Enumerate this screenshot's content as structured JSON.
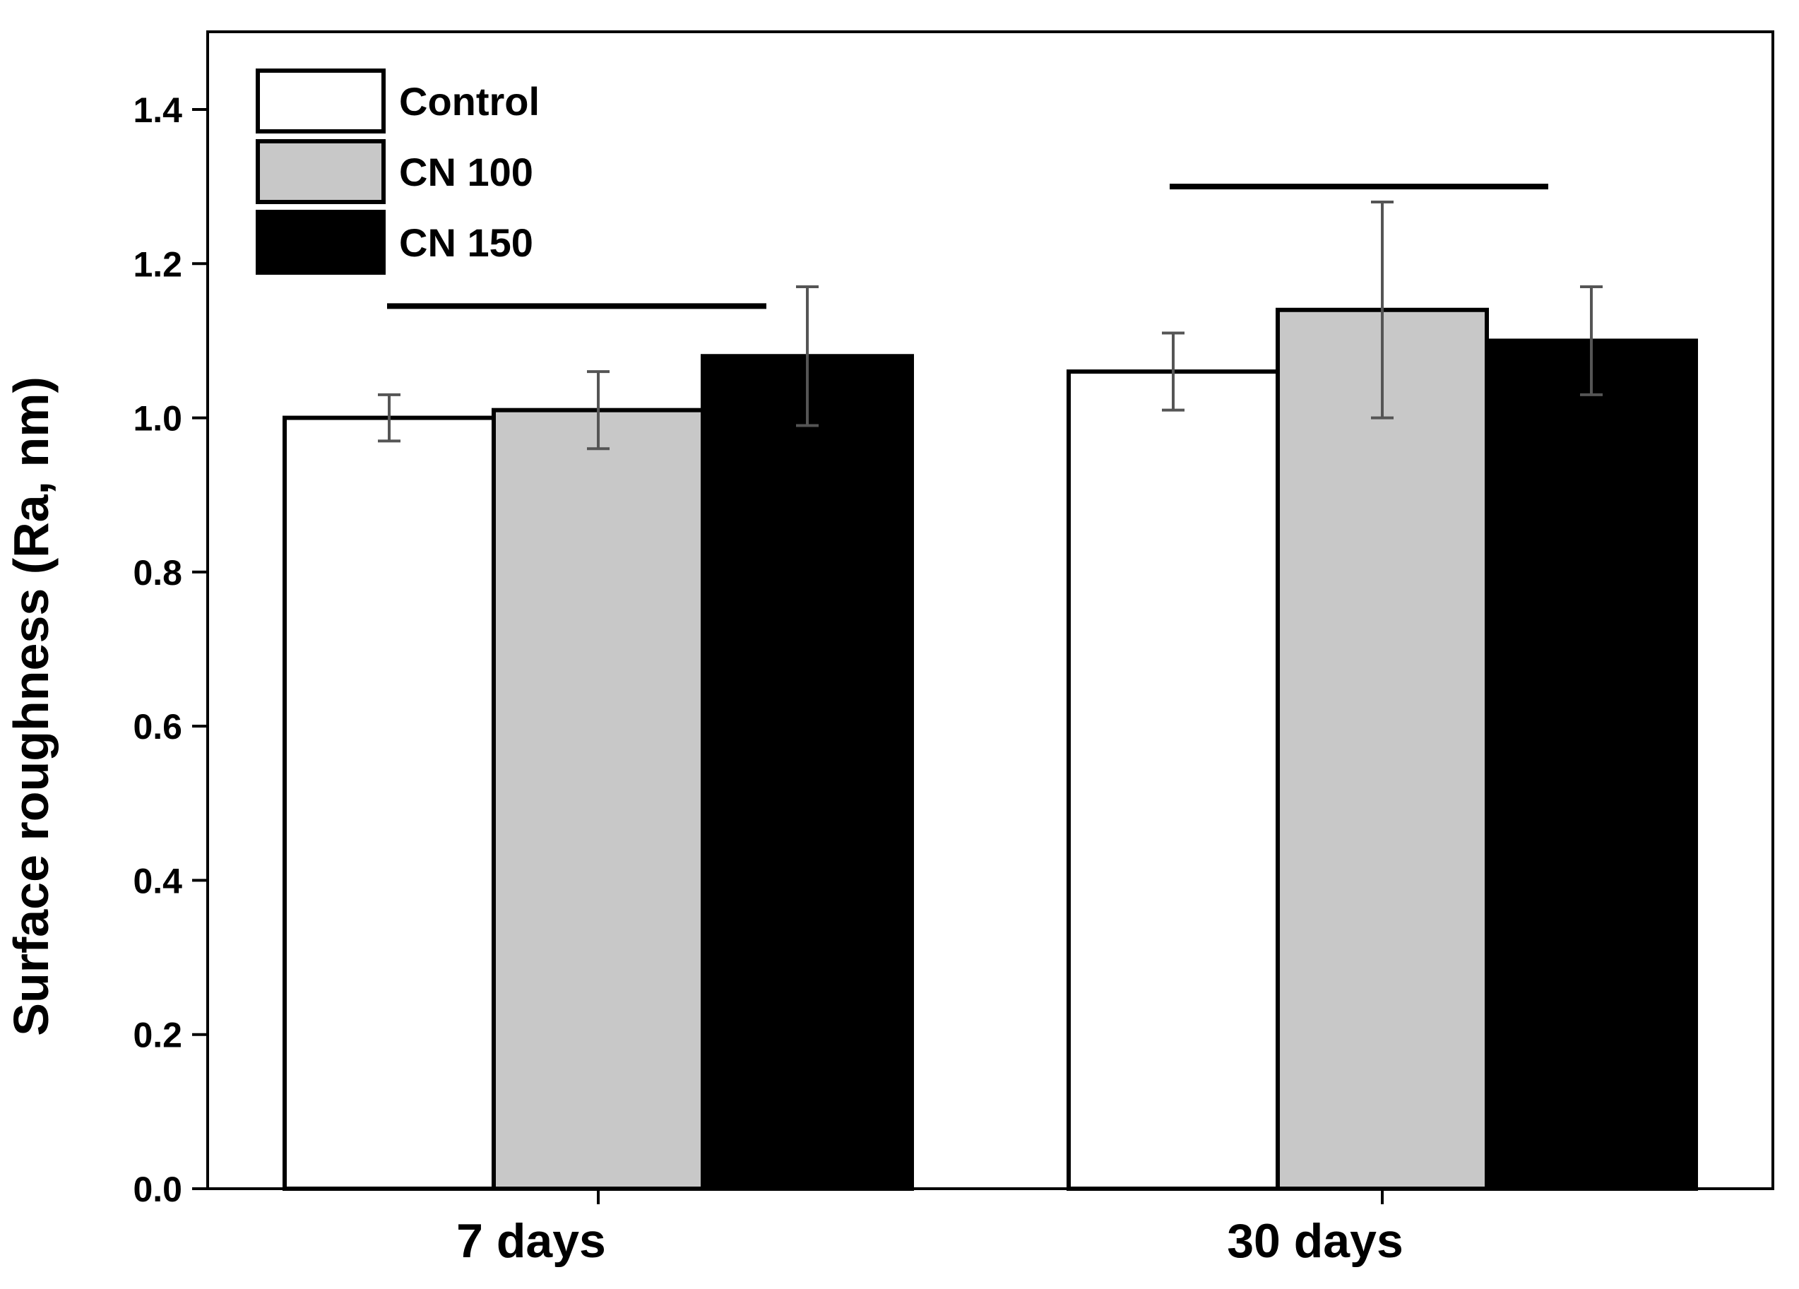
{
  "chart_data": {
    "type": "bar",
    "title": "",
    "xlabel": "",
    "ylabel": "Surface roughness (Ra, nm)",
    "ylim": [
      0,
      1.5
    ],
    "yticks": [
      "0.0",
      "0.2",
      "0.4",
      "0.6",
      "0.8",
      "1.0",
      "1.2",
      "1.4"
    ],
    "categories": [
      "7 days",
      "30 days"
    ],
    "series": [
      {
        "name": "Control",
        "color": "#ffffff",
        "values": [
          1.0,
          1.06
        ],
        "errors": [
          0.03,
          0.05
        ]
      },
      {
        "name": "CN 100",
        "color": "#c8c8c8",
        "values": [
          1.01,
          1.14
        ],
        "errors": [
          0.05,
          0.14
        ]
      },
      {
        "name": "CN 150",
        "color": "#000000",
        "values": [
          1.08,
          1.1
        ],
        "errors": [
          0.09,
          0.07
        ]
      }
    ],
    "legend_position": "top-left",
    "grid": false,
    "annotations": [
      {
        "type": "bracket",
        "category": "7 days",
        "y": 1.145
      },
      {
        "type": "bracket",
        "category": "30 days",
        "y": 1.3
      }
    ]
  }
}
